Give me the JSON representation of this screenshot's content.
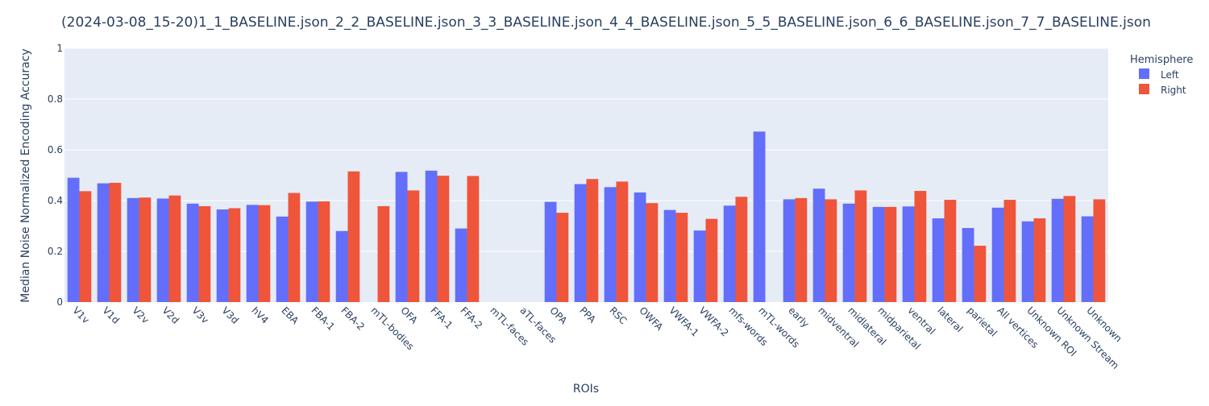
{
  "chart_data": {
    "type": "bar",
    "title": "(2024-03-08_15-20)1_1_BASELINE.json_2_2_BASELINE.json_3_3_BASELINE.json_4_4_BASELINE.json_5_5_BASELINE.json_6_6_BASELINE.json_7_7_BASELINE.json",
    "xlabel": "ROIs",
    "ylabel": "Median Noise Normalized Encoding Accuracy",
    "ylim": [
      0,
      1
    ],
    "yticks": [
      "0",
      "0.2",
      "0.4",
      "0.6",
      "0.8",
      "1"
    ],
    "grid": true,
    "legend": {
      "title": "Hemisphere",
      "placement": "top-right"
    },
    "categories": [
      "V1v",
      "V1d",
      "V2v",
      "V2d",
      "V3v",
      "V3d",
      "hV4",
      "EBA",
      "FBA-1",
      "FBA-2",
      "mTL-bodies",
      "OFA",
      "FFA-1",
      "FFA-2",
      "mTL-faces",
      "aTL-faces",
      "OPA",
      "PPA",
      "RSC",
      "OWFA",
      "VWFA-1",
      "VWFA-2",
      "mfs-words",
      "mTL-words",
      "early",
      "midventral",
      "midlateral",
      "midparietal",
      "ventral",
      "lateral",
      "parietal",
      "All vertices",
      "Unknown ROI",
      "Unknown Stream",
      "Unknown"
    ],
    "series": [
      {
        "name": "Left",
        "color": "#636efa",
        "values": [
          0.49,
          0.468,
          0.41,
          0.408,
          0.388,
          0.365,
          0.383,
          0.337,
          0.396,
          0.28,
          null,
          0.513,
          0.518,
          0.29,
          null,
          null,
          0.395,
          0.465,
          0.453,
          0.432,
          0.363,
          0.282,
          0.38,
          0.672,
          0.405,
          0.447,
          0.388,
          0.375,
          0.377,
          0.33,
          0.292,
          0.372,
          0.318,
          0.407,
          0.338
        ]
      },
      {
        "name": "Right",
        "color": "#ef553b",
        "values": [
          0.437,
          0.47,
          0.412,
          0.42,
          0.378,
          0.37,
          0.382,
          0.43,
          0.397,
          0.515,
          0.378,
          0.44,
          0.498,
          0.497,
          null,
          null,
          0.352,
          0.485,
          0.475,
          0.39,
          0.352,
          0.328,
          0.415,
          null,
          0.41,
          0.405,
          0.44,
          0.375,
          0.438,
          0.403,
          0.222,
          0.403,
          0.33,
          0.418,
          0.405
        ]
      }
    ]
  }
}
